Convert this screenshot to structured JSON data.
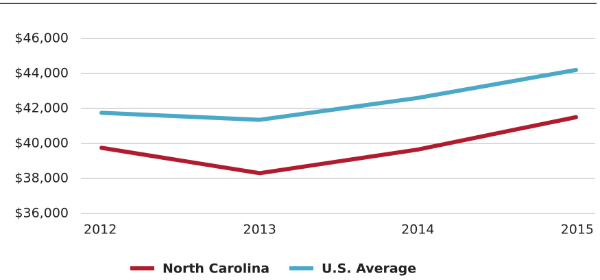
{
  "chart_data": {
    "type": "line",
    "categories": [
      "2012",
      "2013",
      "2014",
      "2015"
    ],
    "series": [
      {
        "name": "North Carolina",
        "color": "#b01c2e",
        "values": [
          39750,
          38300,
          39650,
          41500
        ]
      },
      {
        "name": "U.S. Average",
        "color": "#4aa8c8",
        "values": [
          41750,
          41350,
          42600,
          44200
        ]
      }
    ],
    "ylim": [
      36000,
      46000
    ],
    "yticks": [
      {
        "value": 36000,
        "label": "$36,000"
      },
      {
        "value": 38000,
        "label": "$38,000"
      },
      {
        "value": 40000,
        "label": "$40,000"
      },
      {
        "value": 42000,
        "label": "$42,000"
      },
      {
        "value": 44000,
        "label": "$44,000"
      },
      {
        "value": 46000,
        "label": "$46,000"
      }
    ],
    "grid": true,
    "legend": "bottom"
  }
}
